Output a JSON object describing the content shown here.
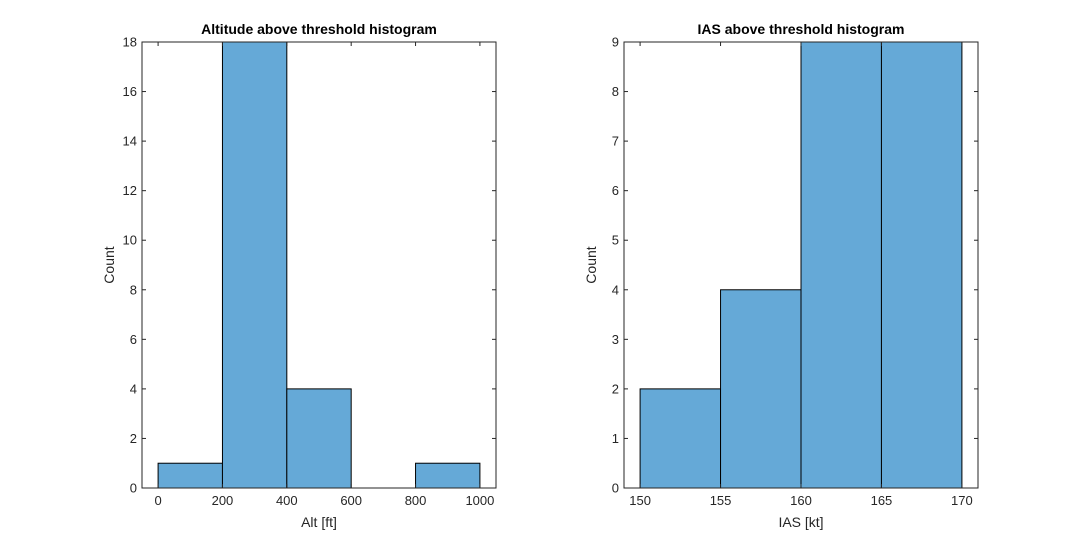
{
  "chart_data": [
    {
      "type": "bar",
      "title": "Altitude above threshold histogram",
      "xlabel": "Alt [ft]",
      "ylabel": "Count",
      "bin_edges": [
        0,
        200,
        400,
        600,
        800,
        1000
      ],
      "values": [
        1,
        18,
        4,
        0,
        1
      ],
      "xlim": [
        -50,
        1050
      ],
      "ylim": [
        0,
        18
      ],
      "xticks": [
        0,
        200,
        400,
        600,
        800,
        1000
      ],
      "yticks": [
        0,
        2,
        4,
        6,
        8,
        10,
        12,
        14,
        16,
        18
      ],
      "bar_color": "#65a9d7",
      "grid": false
    },
    {
      "type": "bar",
      "title": "IAS above threshold histogram",
      "xlabel": "IAS [kt]",
      "ylabel": "Count",
      "bin_edges": [
        150,
        155,
        160,
        165,
        170
      ],
      "values": [
        2,
        4,
        9,
        9
      ],
      "xlim": [
        149,
        171
      ],
      "ylim": [
        0,
        9
      ],
      "xticks": [
        150,
        155,
        160,
        165,
        170
      ],
      "yticks": [
        0,
        1,
        2,
        3,
        4,
        5,
        6,
        7,
        8,
        9
      ],
      "bar_color": "#65a9d7",
      "grid": false
    }
  ]
}
